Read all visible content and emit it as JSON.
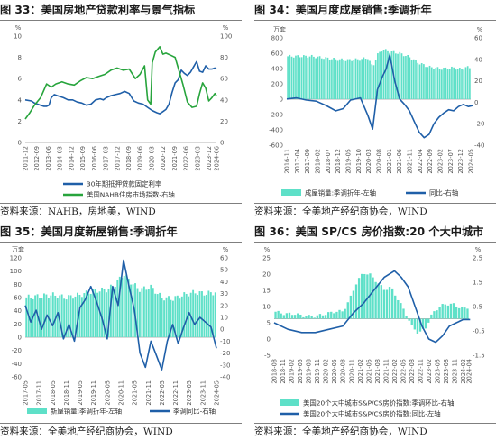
{
  "panels": [
    {
      "title": "图 33：美国房地产贷款利率与景气指标",
      "source": "资料来源：NAHB，房地美，WIND",
      "chart_data": {
        "type": "line",
        "left_unit": "%",
        "right_unit": "%",
        "left_ticks": [
          0,
          2,
          4,
          6,
          8,
          10
        ],
        "right_ticks": [
          0,
          20,
          40,
          60,
          80,
          100
        ],
        "ylim_left": [
          0,
          10
        ],
        "ylim_right": [
          0,
          100
        ],
        "x_range": [
          "2011-12",
          "2024-06"
        ],
        "x_labels": [
          "2011-12",
          "2012-09",
          "2013-06",
          "2014-03",
          "2014-12",
          "2015-09",
          "2016-06",
          "2017-03",
          "2017-12",
          "2018-09",
          "2019-06",
          "2020-03",
          "2020-12",
          "2021-09",
          "2022-06",
          "2023-03",
          "2023-12",
          "2024-06"
        ],
        "grid": false,
        "legend_position": "bottom",
        "series": [
          {
            "name": "30年期抵押贷款固定利率",
            "axis": "left",
            "color": "#1f5fa8",
            "t": [
              0,
              0.4,
              0.6,
              0.8,
              1.0,
              1.2,
              1.4,
              1.55,
              1.7,
              1.9,
              2.1,
              2.3,
              2.5,
              2.8,
              3.1,
              3.4,
              3.7,
              4.0,
              4.3,
              4.6,
              4.9,
              5.1,
              5.3,
              5.6,
              5.9,
              6.2,
              6.5,
              6.8,
              7.1,
              7.4,
              7.7,
              8.0,
              8.3,
              8.6,
              8.8,
              9.0,
              9.2,
              9.4,
              9.6,
              9.8,
              10.0,
              10.2,
              10.4,
              10.6,
              10.8,
              11.0,
              11.2,
              11.4,
              11.6,
              11.8,
              12.0,
              12.2,
              12.4,
              12.5
            ],
            "v": [
              4.0,
              3.9,
              3.7,
              3.6,
              3.5,
              3.4,
              3.4,
              3.5,
              4.2,
              4.5,
              4.4,
              4.3,
              4.2,
              4.0,
              4.0,
              3.8,
              3.7,
              3.5,
              3.6,
              4.0,
              4.1,
              4.0,
              4.2,
              4.4,
              4.5,
              4.6,
              4.8,
              4.6,
              3.9,
              3.7,
              3.6,
              3.3,
              3.0,
              2.8,
              2.7,
              2.9,
              3.1,
              3.6,
              4.7,
              5.6,
              5.9,
              6.8,
              6.5,
              6.3,
              6.6,
              7.1,
              7.6,
              6.7,
              6.6,
              7.2,
              6.9,
              6.9,
              7.0,
              6.9
            ]
          },
          {
            "name": "美国NAHB住房市场指数-右轴",
            "axis": "right",
            "color": "#27a43c",
            "t": [
              0,
              0.3,
              0.6,
              1.0,
              1.4,
              1.7,
              2.0,
              2.4,
              2.8,
              3.2,
              3.6,
              4.0,
              4.4,
              4.8,
              5.2,
              5.6,
              6.0,
              6.4,
              6.8,
              7.2,
              7.5,
              7.8,
              8.0,
              8.2,
              8.3,
              8.5,
              8.8,
              9.0,
              9.2,
              9.5,
              9.8,
              10.0,
              10.3,
              10.6,
              10.9,
              11.2,
              11.4,
              11.6,
              11.8,
              12.0,
              12.2,
              12.4,
              12.5
            ],
            "v": [
              22,
              28,
              35,
              42,
              55,
              52,
              55,
              57,
              55,
              54,
              58,
              61,
              60,
              62,
              64,
              68,
              70,
              68,
              69,
              60,
              64,
              72,
              40,
              36,
              75,
              85,
              90,
              83,
              84,
              82,
              80,
              70,
              55,
              38,
              33,
              34,
              46,
              56,
              51,
              39,
              42,
              46,
              44
            ]
          }
        ]
      }
    },
    {
      "title": "图 34：美国月度成屋销售:季调折年",
      "source": "资料来源：全美地产经纪商协会，WIND",
      "chart_data": {
        "type": "bar+line",
        "left_unit": "万套",
        "right_unit": "%",
        "left_ticks": [
          -600,
          -400,
          -200,
          0,
          200,
          400,
          600,
          800
        ],
        "right_ticks": [
          -40,
          -20,
          0,
          20,
          40,
          60
        ],
        "ylim_left": [
          -600,
          800
        ],
        "ylim_right": [
          -40,
          60
        ],
        "x_range": [
          "2016-11",
          "2024-05"
        ],
        "x_labels": [
          "2016-11",
          "2017-04",
          "2017-09",
          "2018-02",
          "2018-07",
          "2018-12",
          "2019-05",
          "2019-10",
          "2020-03",
          "2020-08",
          "2021-01",
          "2021-06",
          "2021-11",
          "2022-04",
          "2022-09",
          "2023-02",
          "2023-07",
          "2023-12",
          "2024-05"
        ],
        "grid": false,
        "legend_position": "bottom",
        "series": [
          {
            "name": "成屋销量:季调折年-左轴",
            "axis": "left",
            "kind": "bar",
            "color": "#5ee0c8",
            "t": [
              0,
              0.5,
              1.0,
              1.5,
              2.0,
              2.5,
              3.0,
              3.3,
              3.5,
              3.7,
              3.9,
              4.2,
              4.6,
              5.0,
              5.4,
              5.8,
              6.2,
              6.5,
              6.8,
              7.1,
              7.4,
              7.6
            ],
            "v": [
              560,
              560,
              560,
              540,
              520,
              510,
              520,
              540,
              420,
              580,
              650,
              620,
              600,
              550,
              470,
              420,
              400,
              400,
              410,
              390,
              420,
              410
            ]
          },
          {
            "name": "同比-右轴",
            "axis": "right",
            "kind": "line",
            "color": "#1f5fa8",
            "t": [
              0,
              0.4,
              0.8,
              1.2,
              1.6,
              2.0,
              2.3,
              2.6,
              3.0,
              3.3,
              3.5,
              3.7,
              3.9,
              4.05,
              4.2,
              4.4,
              4.6,
              4.8,
              5.0,
              5.2,
              5.4,
              5.6,
              5.8,
              6.0,
              6.2,
              6.4,
              6.6,
              6.8,
              7.0,
              7.2,
              7.4,
              7.6
            ],
            "v": [
              3,
              4,
              2,
              1,
              -3,
              -8,
              -6,
              2,
              4,
              -12,
              -25,
              12,
              24,
              31,
              44,
              20,
              3,
              -2,
              -8,
              -18,
              -28,
              -33,
              -30,
              -20,
              -14,
              -10,
              -7,
              -8,
              -4,
              -2,
              -4,
              -3
            ]
          }
        ]
      }
    },
    {
      "title": "图 35：美国月度新屋销售:季调折年",
      "source": "资料来源：全美地产经纪商协会，WIND",
      "chart_data": {
        "type": "bar+line",
        "left_unit": "万套",
        "right_unit": "%",
        "left_ticks": [
          -60,
          -40,
          -20,
          0,
          20,
          40,
          60,
          80,
          100,
          120
        ],
        "right_ticks": [
          -40,
          -30,
          -20,
          -10,
          0,
          10,
          20,
          30,
          40,
          50,
          60
        ],
        "ylim_left": [
          -60,
          120
        ],
        "ylim_right": [
          -40,
          60
        ],
        "x_range": [
          "2017-05",
          "2024-05"
        ],
        "x_labels": [
          "2017-05",
          "2017-11",
          "2018-05",
          "2018-11",
          "2019-05",
          "2019-11",
          "2020-05",
          "2020-11",
          "2021-05",
          "2021-11",
          "2022-05",
          "2022-11",
          "2023-05",
          "2023-11",
          "2024-05"
        ],
        "grid": false,
        "legend_position": "bottom",
        "series": [
          {
            "name": "新屋销量:季调折年-左轴",
            "axis": "left",
            "kind": "bar",
            "color": "#5ee0c8",
            "t": [
              0,
              0.5,
              1.0,
              1.5,
              2.0,
              2.5,
              3.0,
              3.3,
              3.6,
              3.9,
              4.2,
              4.6,
              5.0,
              5.4,
              5.8,
              6.2,
              6.6,
              7.0
            ],
            "v": [
              60,
              62,
              64,
              60,
              64,
              70,
              72,
              80,
              96,
              82,
              72,
              76,
              60,
              58,
              64,
              68,
              66,
              68
            ]
          },
          {
            "name": "季调同比-右轴",
            "axis": "right",
            "kind": "line",
            "color": "#1f5fa8",
            "t": [
              0,
              0.2,
              0.4,
              0.6,
              0.8,
              1.0,
              1.2,
              1.4,
              1.6,
              1.8,
              2.0,
              2.2,
              2.4,
              2.6,
              2.8,
              3.0,
              3.2,
              3.4,
              3.6,
              3.8,
              4.0,
              4.2,
              4.4,
              4.6,
              4.8,
              5.0,
              5.2,
              5.4,
              5.6,
              5.8,
              6.0,
              6.2,
              6.4,
              6.6,
              6.8,
              7.0
            ],
            "v": [
              20,
              6,
              16,
              0,
              12,
              3,
              14,
              -8,
              4,
              -10,
              18,
              25,
              36,
              24,
              10,
              -8,
              36,
              20,
              58,
              36,
              16,
              -20,
              -32,
              -10,
              -22,
              -34,
              -10,
              4,
              -12,
              2,
              14,
              4,
              10,
              6,
              2,
              -16
            ]
          }
        ]
      }
    },
    {
      "title": "图 36：美国 SP/CS 房价指数:20 个大中城市",
      "source": "资料来源：全美地产经纪商协会，WIND",
      "chart_data": {
        "type": "bar+line",
        "left_unit": "%",
        "right_unit": "%",
        "left_ticks": [
          -5,
          0,
          5,
          10,
          15,
          20,
          25
        ],
        "right_ticks": [
          -1.5,
          -0.5,
          0.5,
          1.5,
          2.5
        ],
        "ylim_left": [
          -5,
          25
        ],
        "ylim_right": [
          -1.5,
          2.5
        ],
        "x_range": [
          "2018-08",
          "2024-04"
        ],
        "x_labels": [
          "2018-08",
          "2018-11",
          "2019-02",
          "2019-05",
          "2019-08",
          "2019-11",
          "2020-02",
          "2020-05",
          "2020-08",
          "2020-11",
          "2021-02",
          "2021-05",
          "2021-08",
          "2021-11",
          "2022-02",
          "2022-05",
          "2022-08",
          "2022-11",
          "2023-02",
          "2023-05",
          "2023-08",
          "2023-11",
          "2024-02",
          "2024-04"
        ],
        "grid": false,
        "legend_position": "bottom",
        "series": [
          {
            "name": "美国20个大中城市S&P/CS房价指数:季调环比-右轴",
            "axis": "right",
            "kind": "bar",
            "color": "#5ee0c8",
            "t": [
              0,
              0.3,
              0.6,
              0.9,
              1.2,
              1.5,
              1.8,
              2.0,
              2.2,
              2.4,
              2.6,
              2.8,
              3.0,
              3.2,
              3.4,
              3.6,
              3.8,
              4.0,
              4.2,
              4.4,
              4.6,
              4.8,
              5.0,
              5.2,
              5.5,
              5.7
            ],
            "v": [
              0.3,
              0.2,
              0.2,
              0.1,
              0.1,
              0.2,
              0.3,
              0.3,
              0.8,
              1.5,
              1.9,
              1.8,
              1.5,
              1.2,
              1.3,
              0.8,
              0.3,
              -0.3,
              -0.6,
              -0.4,
              0.2,
              0.5,
              0.6,
              0.6,
              0.4,
              0.5
            ]
          },
          {
            "name": "美国20个大中城市S&P/CS房价指数:同比-左轴",
            "axis": "left",
            "kind": "line",
            "color": "#1f5fa8",
            "t": [
              0,
              0.4,
              0.8,
              1.2,
              1.6,
              2.0,
              2.3,
              2.6,
              2.9,
              3.2,
              3.5,
              3.7,
              3.9,
              4.1,
              4.3,
              4.5,
              4.7,
              4.9,
              5.1,
              5.3,
              5.5,
              5.7
            ],
            "v": [
              5,
              3,
              2,
              2,
              3,
              4,
              8,
              11,
              15,
              19,
              21,
              19,
              16,
              10,
              4,
              0,
              -1,
              1,
              4,
              5,
              6,
              6
            ]
          }
        ]
      }
    }
  ]
}
